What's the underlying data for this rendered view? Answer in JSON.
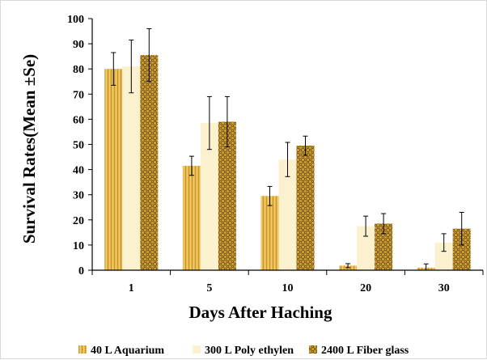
{
  "chart_data": {
    "type": "bar",
    "title": "",
    "xlabel": "Days After Haching",
    "ylabel": "Survival Rates(Mean ±Se)",
    "categories": [
      "1",
      "5",
      "10",
      "20",
      "30"
    ],
    "ylim": [
      0,
      100
    ],
    "yticks": [
      "0",
      "10",
      "20",
      "30",
      "40",
      "50",
      "60",
      "70",
      "80",
      "90",
      "100"
    ],
    "grid": false,
    "legend_position": "bottom",
    "series": [
      {
        "name": "40 L Aquarium",
        "values": [
          80,
          41.5,
          29.5,
          1.8,
          1
        ],
        "errors": [
          6.5,
          3.8,
          3.8,
          0.8,
          1.5
        ],
        "color": "#e6b84a",
        "pattern": "hatch"
      },
      {
        "name": "300 L Poly ethylen",
        "values": [
          81,
          58.5,
          44,
          17.5,
          11
        ],
        "errors": [
          10.5,
          10.5,
          6.8,
          4,
          3.5
        ],
        "color": "#fbf1cf",
        "pattern": "solid"
      },
      {
        "name": "2400 L Fiber glass",
        "values": [
          85.5,
          59,
          49.5,
          18.5,
          16.5
        ],
        "errors": [
          10.5,
          10,
          3.8,
          4,
          6.5
        ],
        "color": "#b1841e",
        "pattern": "checker"
      }
    ]
  }
}
